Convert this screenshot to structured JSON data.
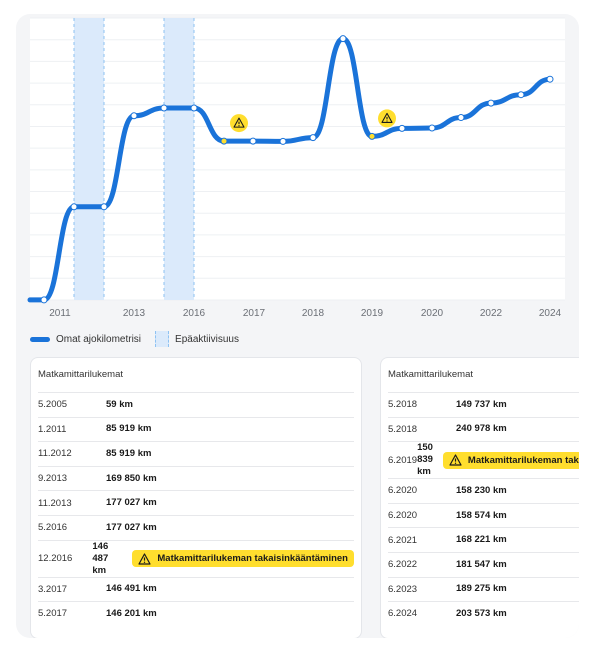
{
  "chart_data": {
    "type": "line",
    "x_ticks": [
      "2011",
      "2013",
      "2016",
      "2017",
      "2018",
      "2019",
      "2020",
      "2022",
      "2024"
    ],
    "series": [
      {
        "name": "Omat ajokilometrisi",
        "color": "#1a73d9",
        "points": [
          {
            "date": "5.2005",
            "km": 59
          },
          {
            "date": "1.2011",
            "km": 85919
          },
          {
            "date": "11.2012",
            "km": 85919
          },
          {
            "date": "9.2013",
            "km": 169850
          },
          {
            "date": "11.2013",
            "km": 177027
          },
          {
            "date": "5.2016",
            "km": 177027
          },
          {
            "date": "12.2016",
            "km": 146487,
            "warning": true
          },
          {
            "date": "3.2017",
            "km": 146491
          },
          {
            "date": "5.2017",
            "km": 146201
          },
          {
            "date": "5.2018",
            "km": 149737
          },
          {
            "date": "5.2018",
            "km": 240978
          },
          {
            "date": "6.2019",
            "km": 150839,
            "warning": true
          },
          {
            "date": "6.2020",
            "km": 158230
          },
          {
            "date": "6.2020",
            "km": 158574
          },
          {
            "date": "6.2021",
            "km": 168221
          },
          {
            "date": "6.2022",
            "km": 181547
          },
          {
            "date": "6.2023",
            "km": 189275
          },
          {
            "date": "6.2024",
            "km": 203573
          }
        ]
      }
    ],
    "inactive_periods": [
      {
        "from": "1.2011",
        "to": "11.2012"
      },
      {
        "from": "11.2013",
        "to": "5.2016"
      }
    ],
    "ylim": [
      0,
      260000
    ],
    "grid": true,
    "legend": [
      {
        "label": "Omat ajokilometrisi",
        "kind": "line",
        "color": "#1a73d9"
      },
      {
        "label": "Epäaktiivisuus",
        "kind": "band",
        "color": "#dbeafb"
      }
    ]
  },
  "tables": {
    "left": {
      "title": "Matkamittarilukemat",
      "rows": [
        {
          "date": "5.2005",
          "km": "59 km"
        },
        {
          "date": "1.2011",
          "km": "85 919 km"
        },
        {
          "date": "11.2012",
          "km": "85 919 km"
        },
        {
          "date": "9.2013",
          "km": "169 850 km"
        },
        {
          "date": "11.2013",
          "km": "177 027 km"
        },
        {
          "date": "5.2016",
          "km": "177 027 km"
        },
        {
          "date": "12.2016",
          "km": "146 487 km",
          "warning": "Matkamittarilukeman takaisinkääntäminen"
        },
        {
          "date": "3.2017",
          "km": "146 491 km"
        },
        {
          "date": "5.2017",
          "km": "146 201 km"
        }
      ]
    },
    "right": {
      "title": "Matkamittarilukemat",
      "rows": [
        {
          "date": "5.2018",
          "km": "149 737 km"
        },
        {
          "date": "5.2018",
          "km": "240 978 km"
        },
        {
          "date": "6.2019",
          "km": "150 839 km",
          "warning": "Matkamittarilukeman takaisinkääntäminen"
        },
        {
          "date": "6.2020",
          "km": "158 230 km"
        },
        {
          "date": "6.2020",
          "km": "158 574 km"
        },
        {
          "date": "6.2021",
          "km": "168 221 km"
        },
        {
          "date": "6.2022",
          "km": "181 547 km"
        },
        {
          "date": "6.2023",
          "km": "189 275 km"
        },
        {
          "date": "6.2024",
          "km": "203 573 km"
        }
      ]
    }
  },
  "colors": {
    "line": "#1a73d9",
    "inactive_band": "#dbeafb",
    "warning": "#ffde2e"
  }
}
